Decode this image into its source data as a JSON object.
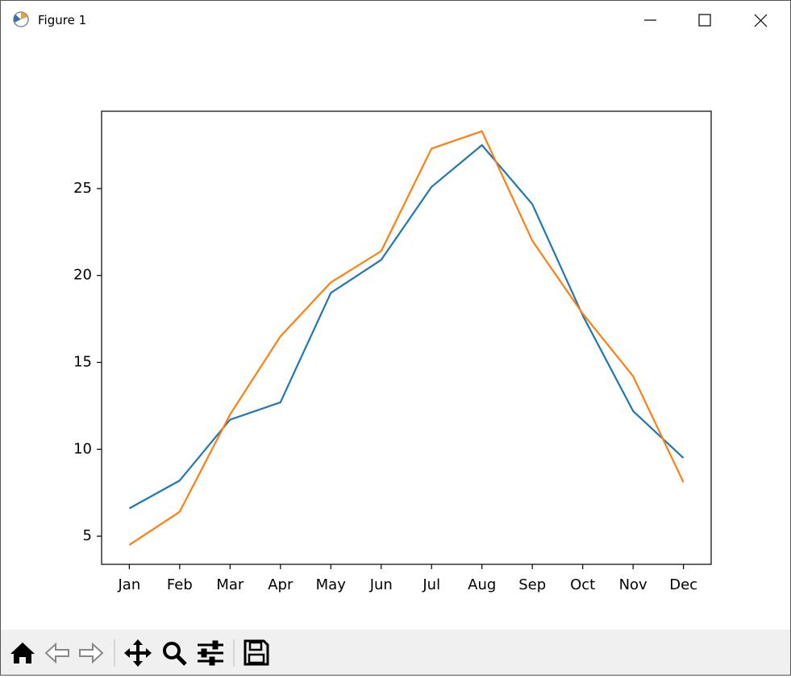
{
  "window": {
    "title": "Figure 1"
  },
  "chart_data": {
    "type": "line",
    "categories": [
      "Jan",
      "Feb",
      "Mar",
      "Apr",
      "May",
      "Jun",
      "Jul",
      "Aug",
      "Sep",
      "Oct",
      "Nov",
      "Dec"
    ],
    "series": [
      {
        "color": "#1f77b4",
        "values": [
          6.6,
          8.2,
          11.7,
          12.7,
          19.0,
          20.9,
          25.1,
          27.5,
          24.1,
          17.7,
          12.2,
          9.5
        ]
      },
      {
        "color": "#ff7f0e",
        "values": [
          4.5,
          6.4,
          12.0,
          16.5,
          19.6,
          21.4,
          27.3,
          28.3,
          22.0,
          17.8,
          14.2,
          8.1
        ]
      }
    ],
    "ylim": [
      3.38,
      29.45
    ],
    "yticks": [
      5,
      10,
      15,
      20,
      25
    ],
    "grid": false
  }
}
